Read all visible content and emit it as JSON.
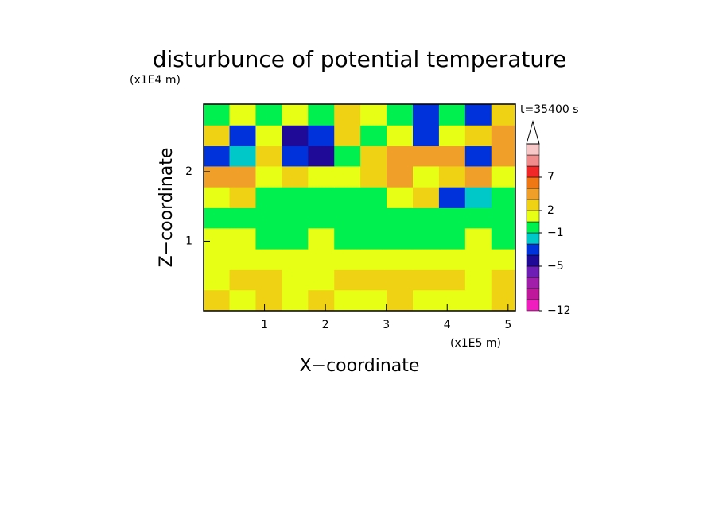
{
  "chart_data": {
    "type": "contour",
    "title": "disturbunce of potential temperature",
    "x_label": "X−coordinate",
    "y_label": "Z−coordinate",
    "x_unit": "(x1E5 m)",
    "y_unit": "(x1E4 m)",
    "annotation": "t=35400 s",
    "xlim": [
      0,
      5.12
    ],
    "ylim": [
      0,
      2.97
    ],
    "xticks": [
      1,
      2,
      3,
      4,
      5
    ],
    "yticks": [
      1,
      2
    ],
    "x": [
      0.21,
      0.64,
      1.07,
      1.5,
      1.93,
      2.36,
      2.79,
      3.22,
      3.65,
      4.08,
      4.51,
      4.94
    ],
    "y": [
      0.15,
      0.45,
      0.74,
      1.04,
      1.34,
      1.63,
      1.93,
      2.23,
      2.52,
      2.82
    ],
    "z": [
      [
        2.5,
        1.5,
        2.5,
        1.5,
        2.5,
        1.5,
        1.5,
        2.5,
        1.5,
        1.5,
        1.5,
        2.5
      ],
      [
        1.5,
        2.5,
        2.5,
        1.5,
        1.5,
        2.5,
        2.5,
        2.5,
        2.5,
        2.5,
        1.5,
        2.5
      ],
      [
        1.5,
        1.5,
        1.5,
        1.5,
        1.5,
        1.5,
        1.5,
        1.5,
        1.5,
        1.5,
        1.5,
        1.5
      ],
      [
        1.5,
        1.5,
        0,
        0,
        1.5,
        0,
        0,
        0,
        0,
        0,
        1.5,
        0
      ],
      [
        0,
        0,
        0,
        0,
        0,
        0,
        0,
        0,
        0,
        0,
        0,
        0
      ],
      [
        1.5,
        2.5,
        0,
        0,
        0,
        0,
        0,
        1.5,
        2.5,
        -3,
        -1.5,
        0
      ],
      [
        4,
        4,
        1.5,
        2.5,
        1.5,
        1.5,
        2.5,
        4,
        1.5,
        2.5,
        4,
        1.5
      ],
      [
        -3,
        -1.5,
        2.5,
        -3,
        -4.5,
        0,
        2.5,
        4,
        4,
        4,
        -3,
        4
      ],
      [
        2.5,
        -3,
        1.5,
        -4.5,
        -3,
        2.5,
        0,
        1.5,
        -3,
        1.5,
        2.5,
        4
      ],
      [
        0,
        1.5,
        0,
        1.5,
        0,
        2.5,
        1.5,
        0,
        -3,
        0,
        -3,
        2.5
      ]
    ],
    "levels": [
      -12,
      -10,
      -8,
      -6,
      -5,
      -4,
      -2,
      -1,
      1,
      2,
      3,
      5,
      7,
      9,
      11,
      13
    ],
    "colors": [
      "#f01ebe",
      "#c0189a",
      "#a01eaa",
      "#6e1eb4",
      "#1e0a96",
      "#0032dc",
      "#00c8c8",
      "#00f050",
      "#e6ff14",
      "#f0d214",
      "#f0a028",
      "#f07814",
      "#f02828",
      "#f08c8c",
      "#f8c8c8"
    ],
    "colorbar_ticks": [
      {
        "value": -12,
        "label": "−12"
      },
      {
        "value": -5,
        "label": "−5"
      },
      {
        "value": -1,
        "label": "−1"
      },
      2,
      7
    ]
  }
}
